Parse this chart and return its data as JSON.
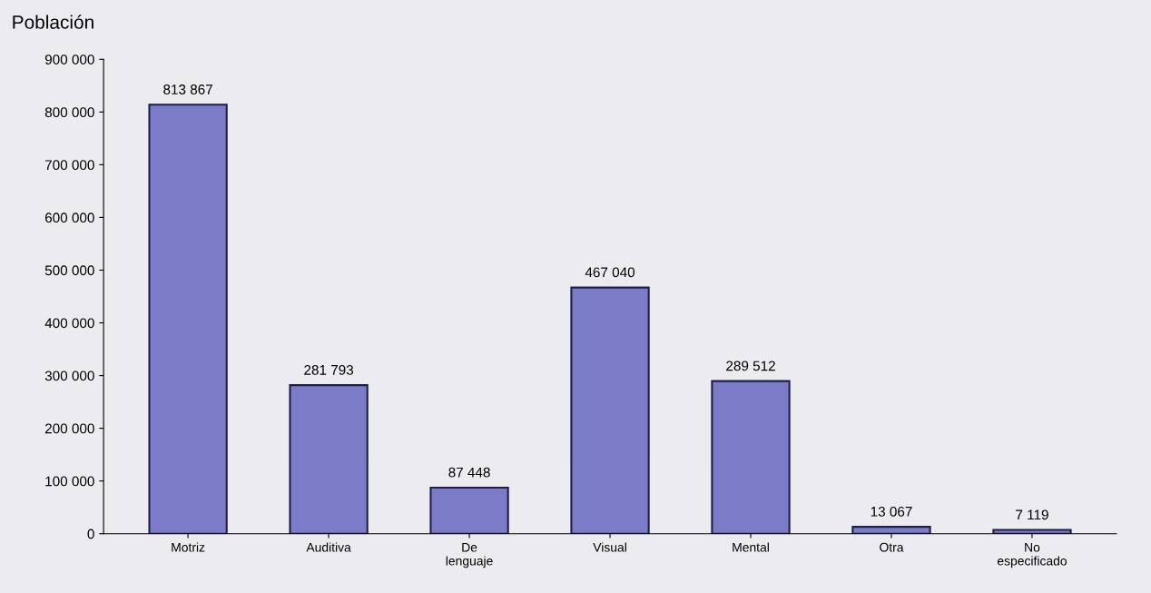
{
  "chart_data": {
    "type": "bar",
    "ylabel": "Población",
    "categories": [
      "Motriz",
      "Auditiva",
      "De\nlenguaje",
      "Visual",
      "Mental",
      "Otra",
      "No\nespecificado"
    ],
    "values": [
      813867,
      281793,
      87448,
      467040,
      289512,
      13067,
      7119
    ],
    "value_labels": [
      "813 867",
      "281 793",
      "87 448",
      "467 040",
      "289 512",
      "13 067",
      "7 119"
    ],
    "color": "#7b7bc8",
    "ylim": [
      0,
      900000
    ],
    "yticks": [
      {
        "value": 0,
        "label": "0"
      },
      {
        "value": 100000,
        "label": "100 000"
      },
      {
        "value": 200000,
        "label": "200 000"
      },
      {
        "value": 300000,
        "label": "300 000"
      },
      {
        "value": 400000,
        "label": "400 000"
      },
      {
        "value": 500000,
        "label": "500 000"
      },
      {
        "value": 600000,
        "label": "600 000"
      },
      {
        "value": 700000,
        "label": "700 000"
      },
      {
        "value": 800000,
        "label": "800 000"
      },
      {
        "value": 900000,
        "label": "900 000"
      }
    ],
    "grid": false
  }
}
